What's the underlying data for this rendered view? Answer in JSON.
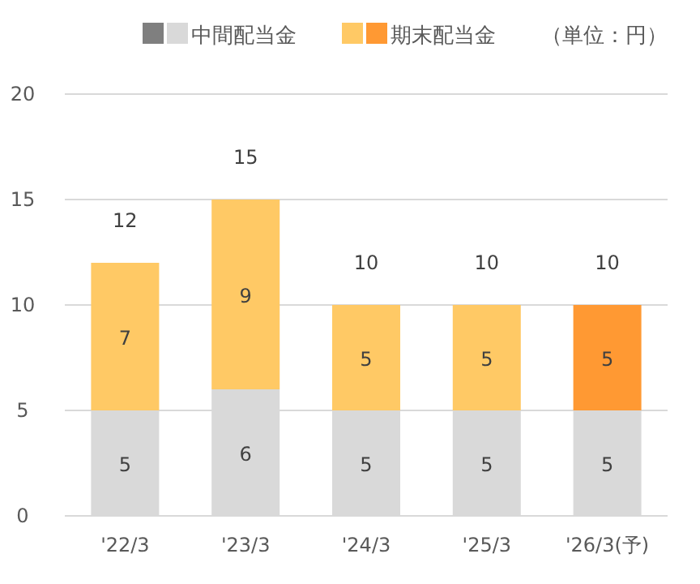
{
  "chart_data": {
    "type": "bar",
    "stacked": true,
    "categories": [
      "'22/3",
      "'23/3",
      "'24/3",
      "'25/3",
      "'26/3(予)"
    ],
    "series": [
      {
        "name": "中間配当金",
        "color": "#d9d9d9",
        "values": [
          5,
          6,
          5,
          5,
          5
        ]
      },
      {
        "name": "期末配当金",
        "color": "#ffc965",
        "colors": [
          "#ffc965",
          "#ffc965",
          "#ffc965",
          "#ffc965",
          "#ff9933"
        ],
        "values": [
          7,
          9,
          5,
          5,
          5
        ]
      }
    ],
    "data_labels": true,
    "totals": [
      "12",
      "15",
      "10",
      "10",
      "10"
    ],
    "ylim": [
      0,
      20
    ],
    "yticks": [
      0,
      5,
      10,
      15,
      20
    ],
    "grid": "y",
    "legend": "top",
    "annotations": [
      "（単位：円）"
    ]
  }
}
